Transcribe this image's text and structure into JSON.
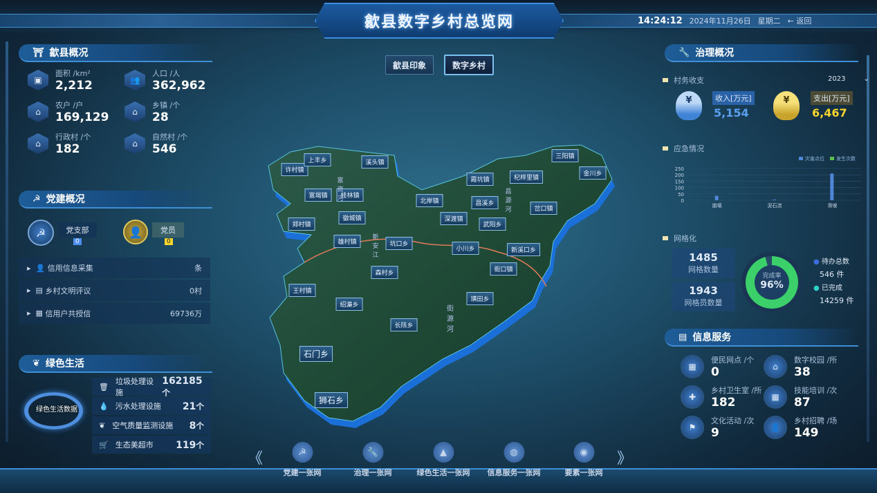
{
  "header": {
    "title": "歙县数字乡村总览网",
    "time": "14:24:12",
    "date": "2024年11月26日",
    "weekday": "星期二",
    "back_label": "← 返回"
  },
  "tabs": [
    {
      "label": "歙县印象",
      "active": false
    },
    {
      "label": "数字乡村",
      "active": true
    }
  ],
  "overview": {
    "title": "歙县概况",
    "stats": [
      {
        "label": "面积 /km²",
        "value": "2,212",
        "icon": "map-icon"
      },
      {
        "label": "人口 /人",
        "value": "362,962",
        "icon": "people-icon"
      },
      {
        "label": "农户 /户",
        "value": "169,129",
        "icon": "farmer-icon"
      },
      {
        "label": "乡镇 /个",
        "value": "28",
        "icon": "town-icon"
      },
      {
        "label": "行政村 /个",
        "value": "182",
        "icon": "village-icon"
      },
      {
        "label": "自然村 /个",
        "value": "546",
        "icon": "house-icon"
      }
    ]
  },
  "party": {
    "title": "党建概况",
    "branch_label": "党支部",
    "branch_value": "0",
    "member_label": "党员",
    "member_value": "0",
    "rows": [
      {
        "label": "信用信息采集",
        "value": "条"
      },
      {
        "label": "乡村文明评议",
        "value": "0村"
      },
      {
        "label": "信用户共授信",
        "value": "69736万"
      }
    ]
  },
  "green": {
    "title": "绿色生活",
    "center_label": "绿色生活数据",
    "items": [
      {
        "label": "垃圾处理设施",
        "value": "162185",
        "unit": "个"
      },
      {
        "label": "污水处理设施",
        "value": "21",
        "unit": "个"
      },
      {
        "label": "空气质量监测设施",
        "value": "8",
        "unit": "个"
      },
      {
        "label": "生态美超市",
        "value": "119",
        "unit": "个"
      }
    ]
  },
  "governance": {
    "title": "治理概况",
    "finance_label": "村务收支",
    "year": "2023",
    "income_label": "收入[万元]",
    "income": "5,154",
    "expense_label": "支出[万元]",
    "expense": "6,467",
    "emergency_label": "应急情况",
    "grid_label": "网格化",
    "grid_count": "1485",
    "grid_count_label": "网格数量",
    "grid_staff": "1943",
    "grid_staff_label": "网格员数量",
    "rate_label": "完成率",
    "rate": "96%",
    "rate_value": 96,
    "pending_label": "待办总数",
    "pending": "546 件",
    "done_label": "已完成",
    "done": "14259 件"
  },
  "chart_data": {
    "type": "bar",
    "categories": [
      "崩塌",
      "泥石流",
      "滑坡"
    ],
    "series": [
      {
        "name": "灾害点位",
        "values": [
          35,
          5,
          210
        ],
        "color": "#4f86d8"
      },
      {
        "name": "发生次数",
        "values": [
          0,
          0,
          0
        ],
        "color": "#5cbf4f"
      }
    ],
    "ylim": [
      0,
      250
    ],
    "yticks": [
      "0",
      "50",
      "100",
      "150",
      "200",
      "250"
    ],
    "legend": "top-right",
    "grid": true
  },
  "info": {
    "title": "信息服务",
    "items": [
      {
        "label": "便民网点 /个",
        "value": "0"
      },
      {
        "label": "数字校园 /所",
        "value": "38"
      },
      {
        "label": "乡村卫生室 /所",
        "value": "182"
      },
      {
        "label": "技能培训 /次",
        "value": "87"
      },
      {
        "label": "文化活动 /次",
        "value": "9"
      },
      {
        "label": "乡村招聘 /场",
        "value": "149"
      }
    ]
  },
  "map": {
    "towns": [
      "许村镇",
      "上丰乡",
      "溪头镇",
      "富堨镇",
      "桂林镇",
      "霞坑镇",
      "杞梓里镇",
      "三阳镇",
      "金川乡",
      "北岸镇",
      "昌溪乡",
      "岔口镇",
      "徽城镇",
      "郑村镇",
      "深渡镇",
      "武阳乡",
      "雄村镇",
      "坑口乡",
      "小川乡",
      "新溪口乡",
      "街口镇",
      "森村乡",
      "王村镇",
      "绍濂乡",
      "璜田乡",
      "长陔乡",
      "石门乡",
      "狮石乡"
    ],
    "rivers": [
      "富资河",
      "新安江",
      "昌源河",
      "街源河"
    ]
  },
  "bottom_nav": [
    "党建一张网",
    "治理一张网",
    "绿色生活一张网",
    "信息服务一张网",
    "要素一张网"
  ]
}
